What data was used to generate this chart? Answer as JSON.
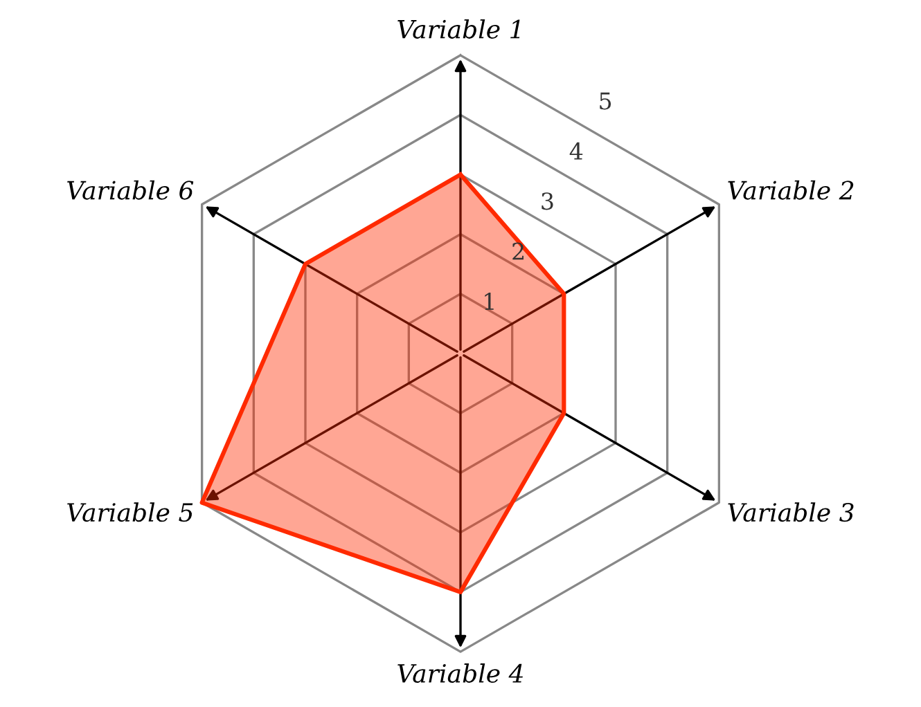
{
  "chart_data": {
    "type": "radar",
    "categories": [
      "Variable 1",
      "Variable 2",
      "Variable 3",
      "Variable 4",
      "Variable 5",
      "Variable 6"
    ],
    "series": [
      {
        "color": "#ff2a00",
        "values": [
          3,
          2,
          2,
          4,
          5,
          3
        ]
      }
    ],
    "ylim": [
      0,
      5
    ],
    "yticks": [
      1,
      2,
      3,
      4,
      5
    ],
    "grid": true
  }
}
